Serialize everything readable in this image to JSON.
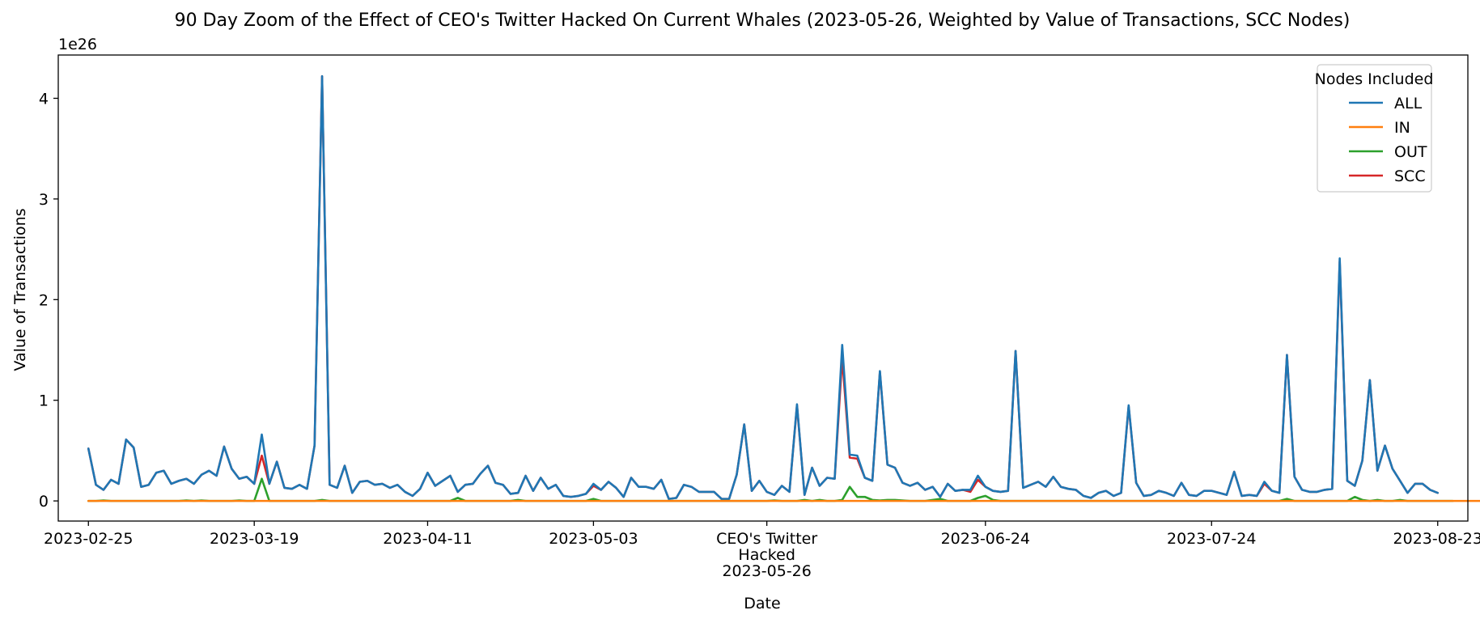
{
  "chart_data": {
    "type": "line",
    "title": "90 Day Zoom of the Effect of CEO's Twitter Hacked On Current Whales (2023-05-26, Weighted by Value of Transactions, SCC Nodes)",
    "xlabel": "Date",
    "ylabel": "Value of Transactions",
    "y_offset_label": "1e26",
    "y_multiplier": 1e+26,
    "ylim": [
      -0.2,
      4.43
    ],
    "xlim": [
      "2023-02-21",
      "2023-08-27"
    ],
    "grid": false,
    "x_start": "2023-02-25",
    "x_step_days": 1,
    "y_ticks": [
      {
        "value": 0,
        "label": "0"
      },
      {
        "value": 1,
        "label": "1"
      },
      {
        "value": 2,
        "label": "2"
      },
      {
        "value": 3,
        "label": "3"
      },
      {
        "value": 4,
        "label": "4"
      }
    ],
    "x_ticks": [
      {
        "date": "2023-02-25",
        "lines": [
          "2023-02-25"
        ]
      },
      {
        "date": "2023-03-19",
        "lines": [
          "2023-03-19"
        ]
      },
      {
        "date": "2023-04-11",
        "lines": [
          "2023-04-11"
        ]
      },
      {
        "date": "2023-05-03",
        "lines": [
          "2023-05-03"
        ]
      },
      {
        "date": "2023-05-26",
        "lines": [
          "CEO's Twitter",
          "Hacked",
          "2023-05-26"
        ]
      },
      {
        "date": "2023-06-24",
        "lines": [
          "2023-06-24"
        ]
      },
      {
        "date": "2023-07-24",
        "lines": [
          "2023-07-24"
        ]
      },
      {
        "date": "2023-08-23",
        "lines": [
          "2023-08-23"
        ]
      }
    ],
    "legend": {
      "title": "Nodes Included",
      "placement": "top-right",
      "entries": [
        {
          "name": "ALL",
          "color": "#1f77b4"
        },
        {
          "name": "IN",
          "color": "#ff7f0e"
        },
        {
          "name": "OUT",
          "color": "#2ca02c"
        },
        {
          "name": "SCC",
          "color": "#d62728"
        }
      ]
    },
    "series": [
      {
        "name": "SCC",
        "color": "#d62728",
        "values": [
          0.52,
          0.16,
          0.11,
          0.21,
          0.17,
          0.61,
          0.53,
          0.14,
          0.16,
          0.28,
          0.3,
          0.17,
          0.2,
          0.22,
          0.17,
          0.26,
          0.3,
          0.25,
          0.54,
          0.32,
          0.22,
          0.24,
          0.17,
          0.45,
          0.17,
          0.39,
          0.13,
          0.12,
          0.16,
          0.12,
          0.55,
          4.22,
          0.16,
          0.13,
          0.35,
          0.08,
          0.19,
          0.2,
          0.16,
          0.17,
          0.13,
          0.16,
          0.09,
          0.05,
          0.12,
          0.28,
          0.15,
          0.2,
          0.25,
          0.09,
          0.16,
          0.17,
          0.27,
          0.35,
          0.18,
          0.16,
          0.07,
          0.08,
          0.25,
          0.1,
          0.23,
          0.12,
          0.16,
          0.05,
          0.04,
          0.05,
          0.07,
          0.15,
          0.11,
          0.19,
          0.13,
          0.04,
          0.23,
          0.14,
          0.14,
          0.12,
          0.21,
          0.02,
          0.03,
          0.16,
          0.14,
          0.09,
          0.09,
          0.09,
          0.02,
          0.02,
          0.26,
          0.76,
          0.1,
          0.2,
          0.09,
          0.06,
          0.15,
          0.09,
          0.95,
          0.06,
          0.33,
          0.15,
          0.23,
          0.22,
          1.42,
          0.43,
          0.42,
          0.23,
          0.2,
          1.28,
          0.36,
          0.33,
          0.18,
          0.15,
          0.18,
          0.11,
          0.14,
          0.04,
          0.17,
          0.1,
          0.11,
          0.09,
          0.21,
          0.14,
          0.1,
          0.09,
          0.1,
          1.49,
          0.13,
          0.16,
          0.19,
          0.14,
          0.24,
          0.14,
          0.12,
          0.11,
          0.05,
          0.03,
          0.08,
          0.1,
          0.05,
          0.08,
          0.94,
          0.18,
          0.05,
          0.06,
          0.1,
          0.08,
          0.05,
          0.18,
          0.06,
          0.05,
          0.1,
          0.1,
          0.08,
          0.06,
          0.29,
          0.05,
          0.06,
          0.05,
          0.17,
          0.1,
          0.08,
          1.45,
          0.24,
          0.11,
          0.09,
          0.09,
          0.11,
          0.12,
          2.38,
          0.2,
          0.15,
          0.4,
          1.2,
          0.3,
          0.55,
          0.32,
          0.2,
          0.08,
          0.17,
          0.17,
          0.11,
          0.08
        ]
      },
      {
        "name": "ALL",
        "color": "#1f77b4",
        "values": [
          0.52,
          0.16,
          0.11,
          0.21,
          0.17,
          0.61,
          0.53,
          0.14,
          0.16,
          0.28,
          0.3,
          0.17,
          0.2,
          0.22,
          0.17,
          0.26,
          0.3,
          0.25,
          0.54,
          0.32,
          0.22,
          0.24,
          0.17,
          0.66,
          0.17,
          0.39,
          0.13,
          0.12,
          0.16,
          0.12,
          0.55,
          4.22,
          0.16,
          0.13,
          0.35,
          0.08,
          0.19,
          0.2,
          0.16,
          0.17,
          0.13,
          0.16,
          0.09,
          0.05,
          0.12,
          0.28,
          0.15,
          0.2,
          0.25,
          0.09,
          0.16,
          0.17,
          0.27,
          0.35,
          0.18,
          0.16,
          0.07,
          0.08,
          0.25,
          0.1,
          0.23,
          0.12,
          0.16,
          0.05,
          0.04,
          0.05,
          0.07,
          0.17,
          0.11,
          0.19,
          0.13,
          0.04,
          0.23,
          0.14,
          0.14,
          0.12,
          0.21,
          0.02,
          0.03,
          0.16,
          0.14,
          0.09,
          0.09,
          0.09,
          0.02,
          0.02,
          0.26,
          0.76,
          0.1,
          0.2,
          0.09,
          0.06,
          0.15,
          0.09,
          0.96,
          0.06,
          0.33,
          0.15,
          0.23,
          0.22,
          1.55,
          0.46,
          0.45,
          0.23,
          0.2,
          1.29,
          0.36,
          0.33,
          0.18,
          0.15,
          0.18,
          0.11,
          0.14,
          0.04,
          0.17,
          0.1,
          0.11,
          0.11,
          0.25,
          0.14,
          0.1,
          0.09,
          0.1,
          1.49,
          0.13,
          0.16,
          0.19,
          0.14,
          0.24,
          0.14,
          0.12,
          0.11,
          0.05,
          0.03,
          0.08,
          0.1,
          0.05,
          0.08,
          0.95,
          0.18,
          0.05,
          0.06,
          0.1,
          0.08,
          0.05,
          0.18,
          0.06,
          0.05,
          0.1,
          0.1,
          0.08,
          0.06,
          0.29,
          0.05,
          0.06,
          0.05,
          0.19,
          0.1,
          0.08,
          1.45,
          0.24,
          0.11,
          0.09,
          0.09,
          0.11,
          0.12,
          2.41,
          0.2,
          0.15,
          0.4,
          1.2,
          0.3,
          0.55,
          0.32,
          0.2,
          0.08,
          0.17,
          0.17,
          0.11,
          0.08
        ]
      },
      {
        "name": "OUT",
        "color": "#2ca02c",
        "values": [
          0,
          0,
          0.005,
          0,
          0,
          0,
          0,
          0,
          0,
          0,
          0,
          0,
          0,
          0.005,
          0,
          0.005,
          0,
          0,
          0,
          0,
          0.005,
          0,
          0,
          0.22,
          0,
          0,
          0,
          0,
          0,
          0,
          0,
          0.01,
          0,
          0,
          0,
          0,
          0,
          0,
          0,
          0,
          0,
          0,
          0,
          0,
          0,
          0,
          0,
          0,
          0,
          0.03,
          0,
          0,
          0,
          0,
          0,
          0,
          0,
          0.01,
          0,
          0,
          0,
          0,
          0,
          0,
          0,
          0,
          0,
          0.02,
          0,
          0,
          0,
          0,
          0,
          0,
          0,
          0,
          0,
          0,
          0,
          0,
          0,
          0,
          0,
          0,
          0,
          0,
          0,
          0,
          0,
          0,
          0,
          0.005,
          0,
          0,
          0,
          0.01,
          0,
          0.01,
          0,
          0,
          0.01,
          0.14,
          0.04,
          0.04,
          0.01,
          0.005,
          0.01,
          0.01,
          0.005,
          0,
          0,
          0,
          0.01,
          0.02,
          0,
          0,
          0,
          0,
          0.03,
          0.05,
          0.01,
          0,
          0,
          0,
          0,
          0,
          0,
          0,
          0,
          0,
          0,
          0,
          0,
          0,
          0,
          0,
          0,
          0,
          0,
          0,
          0,
          0,
          0,
          0,
          0,
          0,
          0,
          0,
          0,
          0,
          0,
          0,
          0,
          0,
          0,
          0,
          0,
          0,
          0,
          0.02,
          0,
          0,
          0,
          0,
          0,
          0,
          0,
          0,
          0.04,
          0.01,
          0,
          0.01,
          0,
          0,
          0.01,
          0,
          0,
          0,
          0,
          0,
          0,
          0
        ]
      },
      {
        "name": "IN",
        "color": "#ff7f0e",
        "values": [
          0,
          0,
          0,
          0,
          0,
          0,
          0,
          0,
          0,
          0,
          0,
          0,
          0,
          0,
          0,
          0,
          0,
          0,
          0,
          0,
          0,
          0,
          0,
          0,
          0,
          0,
          0,
          0,
          0,
          0,
          0,
          0,
          0,
          0,
          0,
          0,
          0,
          0,
          0,
          0,
          0,
          0,
          0,
          0,
          0,
          0,
          0,
          0,
          0,
          0,
          0,
          0,
          0,
          0,
          0,
          0,
          0,
          0,
          0,
          0,
          0,
          0,
          0,
          0,
          0,
          0,
          0,
          0,
          0,
          0,
          0,
          0,
          0,
          0,
          0,
          0,
          0,
          0,
          0,
          0,
          0,
          0,
          0,
          0,
          0,
          0,
          0,
          0,
          0,
          0,
          0,
          0,
          0,
          0,
          0,
          0,
          0,
          0,
          0,
          0,
          0,
          0,
          0,
          0,
          0,
          0,
          0,
          0,
          0,
          0,
          0,
          0,
          0,
          0,
          0,
          0,
          0,
          0,
          0,
          0,
          0,
          0,
          0,
          0,
          0,
          0,
          0,
          0,
          0,
          0,
          0,
          0,
          0,
          0,
          0,
          0,
          0,
          0,
          0,
          0,
          0,
          0,
          0,
          0,
          0,
          0,
          0,
          0,
          0,
          0,
          0,
          0,
          0,
          0,
          0,
          0,
          0,
          0,
          0,
          0,
          0,
          0,
          0,
          0,
          0,
          0,
          0,
          0,
          0,
          0,
          0,
          0,
          0,
          0,
          0,
          0,
          0,
          0,
          0,
          0,
          0,
          0,
          0,
          0,
          0,
          0,
          0,
          0,
          0,
          0
        ]
      }
    ]
  }
}
